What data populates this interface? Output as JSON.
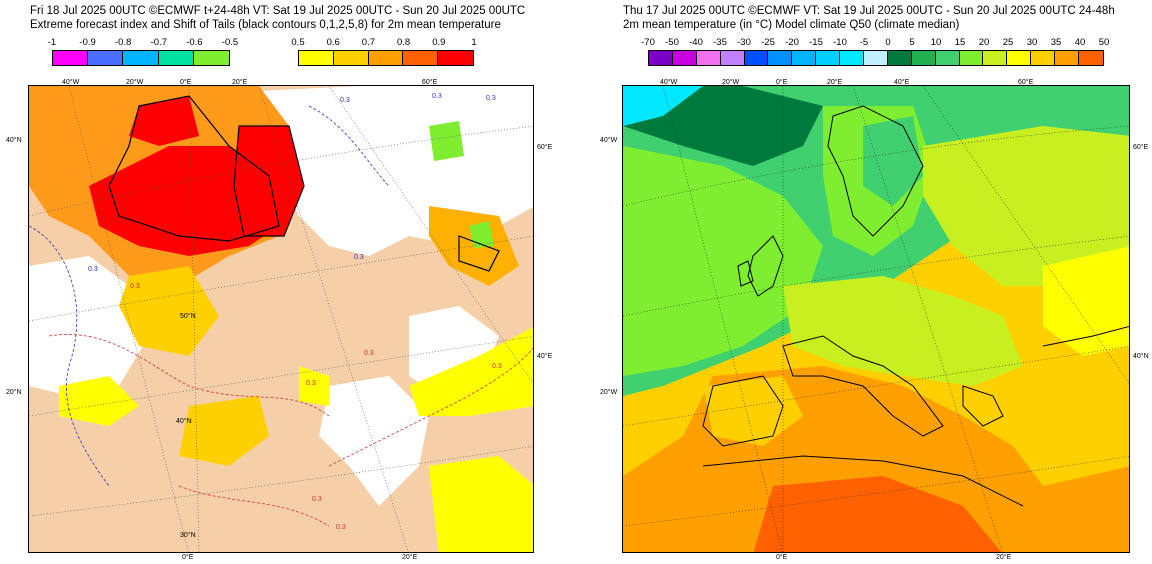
{
  "left": {
    "title_line1": "Fri 18 Jul 2025 00UTC ©ECMWF t+24-48h  VT: Sat 19 Jul 2025 00UTC - Sun 20 Jul 2025 00UTC",
    "title_line2": "Extreme forecast index and Shift of Tails (black contours 0,1,2,5,8) for 2m mean temperature",
    "colorbar_neg": {
      "labels": [
        "-1",
        "-0.9",
        "-0.8",
        "-0.7",
        "-0.6",
        "-0.5"
      ],
      "colors": [
        "#ff00ff",
        "#4a6cff",
        "#00b4ff",
        "#00e0a0",
        "#80ee30"
      ]
    },
    "colorbar_pos": {
      "labels": [
        "0.5",
        "0.6",
        "0.7",
        "0.8",
        "0.9",
        "1"
      ],
      "colors": [
        "#ffff00",
        "#ffd000",
        "#ffa000",
        "#ff6000",
        "#ff0000"
      ]
    },
    "lat_labels": [
      "40°N",
      "20°N",
      "40°N",
      "50°N",
      "30°N"
    ],
    "lon_labels": [
      "40°W",
      "20°W",
      "0°E",
      "20°E",
      "60°E",
      "60°E",
      "40°E",
      "0°E",
      "20°E"
    ],
    "contour_labels": [
      "0.3",
      "0.3",
      "0.3",
      "0.3",
      "0.3",
      "0.3",
      "0.3",
      "0.3",
      "0.3",
      "0.3",
      "0.3"
    ]
  },
  "right": {
    "title_line1": "Thu 17 Jul 2025 00UTC ©ECMWF VT: Sat 19 Jul 2025 00UTC - Sun 20 Jul 2025 00UTC   24-48h",
    "title_line2": "2m mean temperature (in °C)  Model climate Q50 (climate median)",
    "colorbar": {
      "labels": [
        "-70",
        "-50",
        "-40",
        "-35",
        "-30",
        "-25",
        "-20",
        "-15",
        "-10",
        "-5",
        "0",
        "5",
        "10",
        "15",
        "20",
        "25",
        "30",
        "35",
        "40",
        "50"
      ],
      "colors": [
        "#7a00c8",
        "#c800e0",
        "#f070f0",
        "#c080ff",
        "#0050ff",
        "#0090ff",
        "#00b4ff",
        "#00d0ff",
        "#00e8ff",
        "#c0f0ff",
        "#007a3c",
        "#20b050",
        "#40d070",
        "#80ee30",
        "#c8f020",
        "#ffff00",
        "#ffd000",
        "#ffa000",
        "#ff6000"
      ]
    },
    "lat_labels": [
      "40°W",
      "20°W",
      "60°E",
      "40°N"
    ],
    "lon_labels": [
      "40°W",
      "20°W",
      "0°E",
      "20°E",
      "40°E",
      "60°E",
      "0°E",
      "20°E"
    ]
  }
}
